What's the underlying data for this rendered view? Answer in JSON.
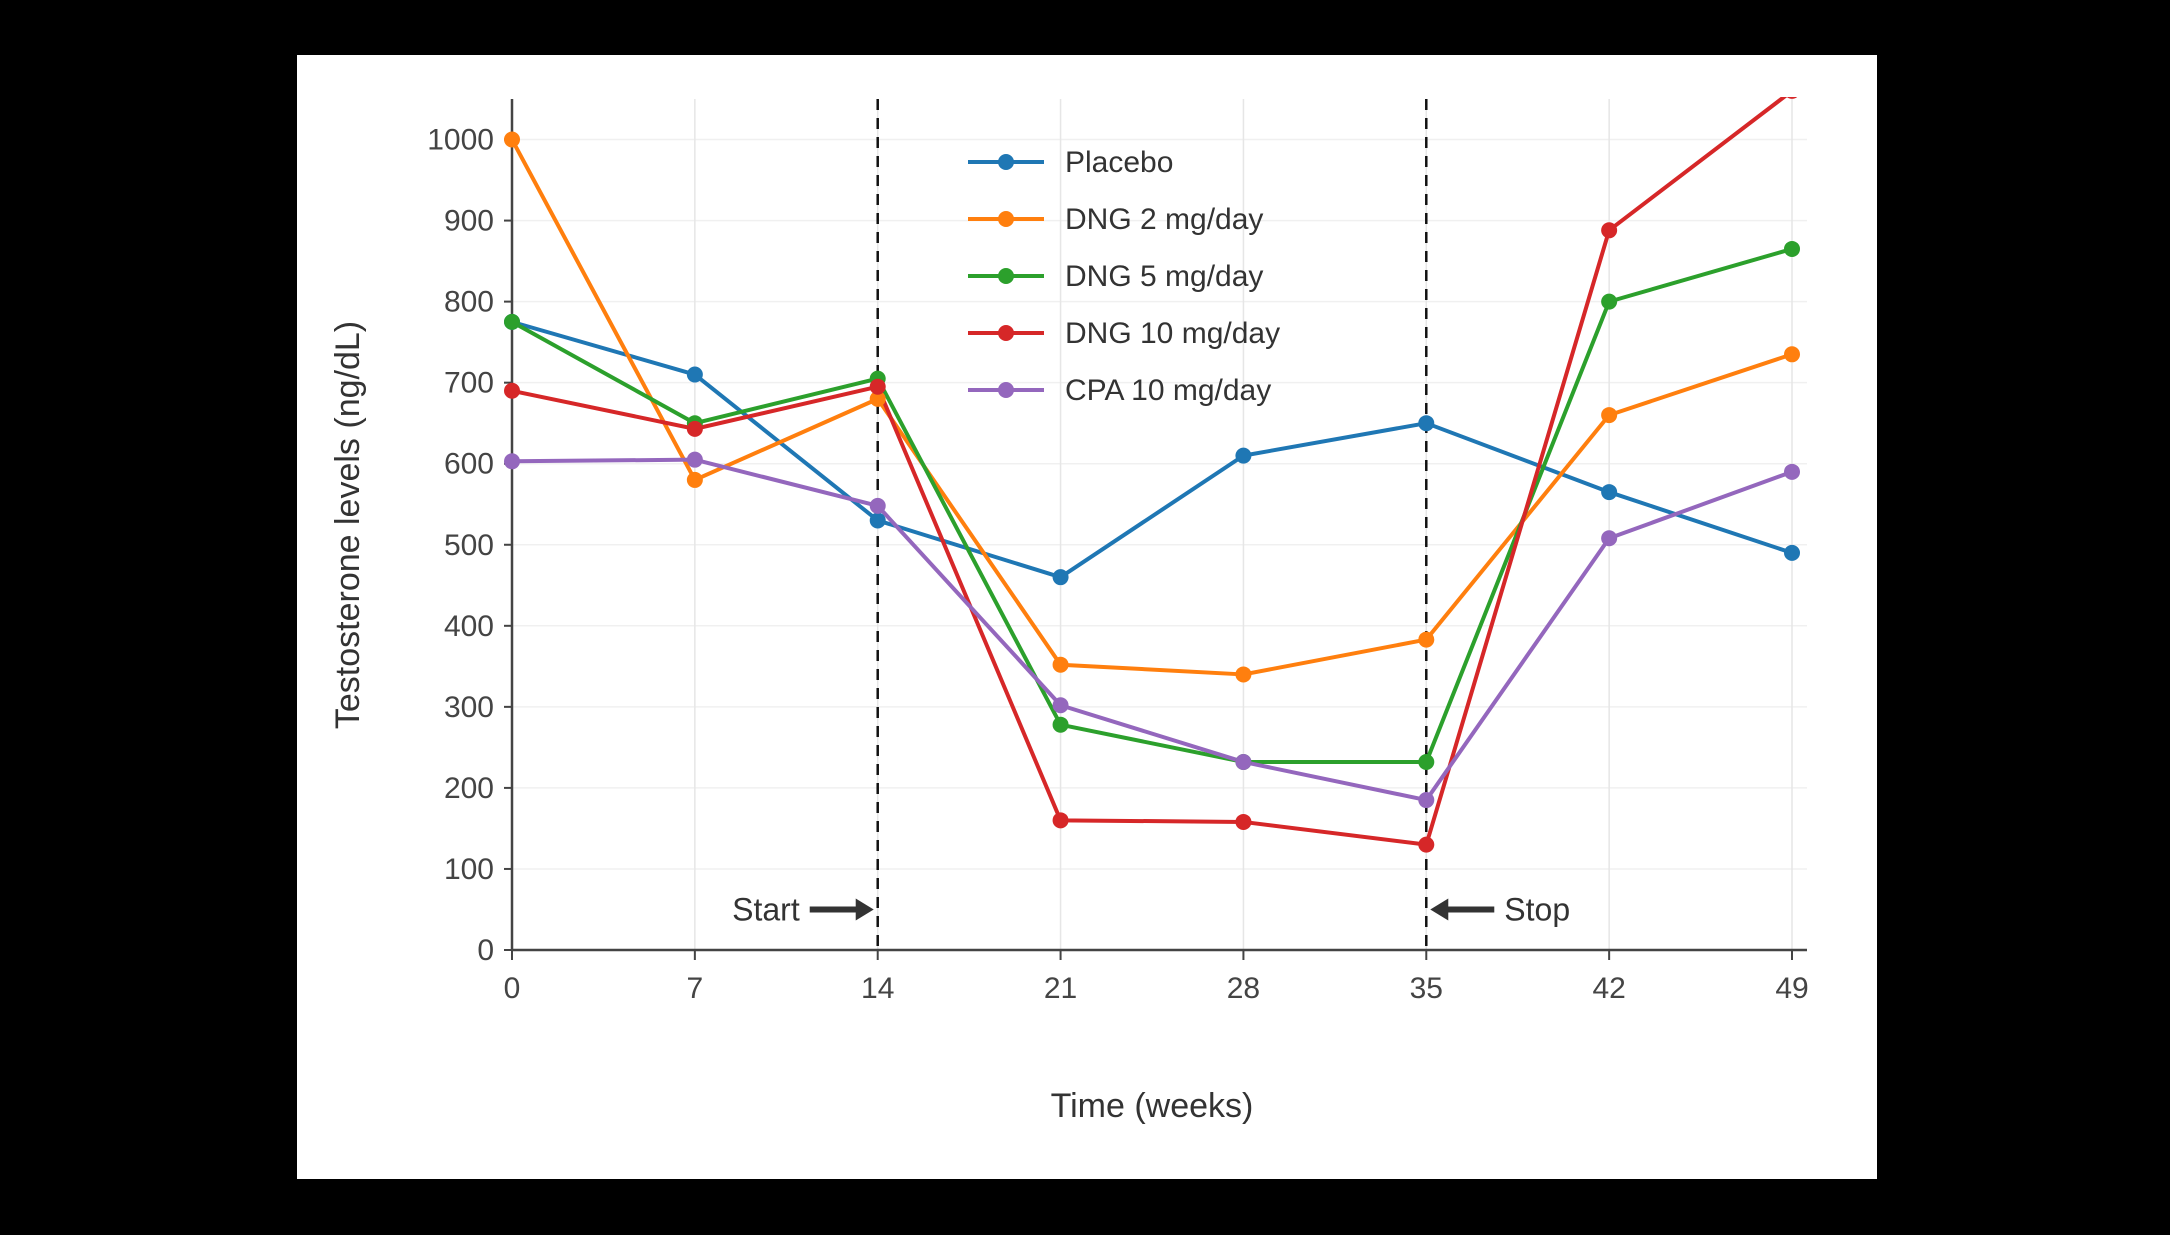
{
  "chart_data": {
    "type": "line",
    "title": "",
    "xlabel": "Time (weeks)",
    "ylabel": "Testosterone levels (ng/dL)",
    "x": [
      0,
      7,
      14,
      21,
      28,
      35,
      42,
      49
    ],
    "xticks": [
      0,
      7,
      14,
      21,
      28,
      35,
      42,
      49
    ],
    "yticks": [
      0,
      100,
      200,
      300,
      400,
      500,
      600,
      700,
      800,
      900,
      1000
    ],
    "xlim": [
      0,
      49
    ],
    "ylim": [
      0,
      1050
    ],
    "grid": true,
    "legend_position": "top-center-inside",
    "series": [
      {
        "name": "Placebo",
        "color": "#1f77b4",
        "values": [
          775,
          710,
          530,
          460,
          610,
          650,
          565,
          490
        ]
      },
      {
        "name": "DNG 2 mg/day",
        "color": "#ff7f0e",
        "values": [
          1000,
          580,
          680,
          352,
          340,
          383,
          660,
          735
        ]
      },
      {
        "name": "DNG 5 mg/day",
        "color": "#2ca02c",
        "values": [
          775,
          650,
          705,
          278,
          232,
          232,
          800,
          865
        ]
      },
      {
        "name": "DNG 10 mg/day",
        "color": "#d62728",
        "values": [
          690,
          643,
          695,
          160,
          158,
          130,
          888,
          1060
        ]
      },
      {
        "name": "CPA 10 mg/day",
        "color": "#9467bd",
        "values": [
          603,
          605,
          548,
          302,
          232,
          185,
          508,
          590
        ]
      }
    ],
    "vlines": [
      {
        "x": 14,
        "label": "Start",
        "arrow": "right",
        "label_y": 50
      },
      {
        "x": 35,
        "label": "Stop",
        "arrow": "left",
        "label_y": 50
      }
    ]
  }
}
